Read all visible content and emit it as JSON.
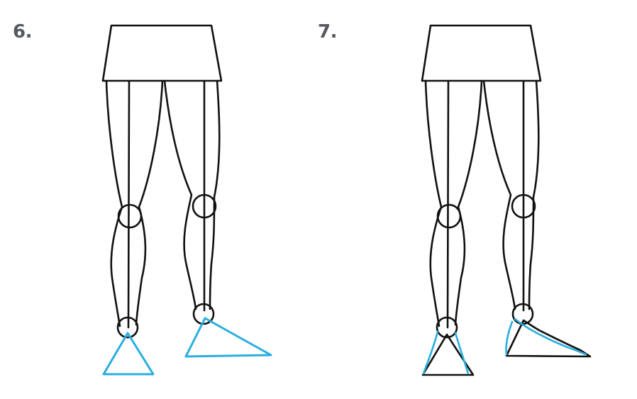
{
  "steps": [
    {
      "number": "6."
    },
    {
      "number": "7."
    }
  ],
  "colors": {
    "ink": "#111111",
    "guide_blue": "#29aee0",
    "label_gray": "#555a60"
  }
}
